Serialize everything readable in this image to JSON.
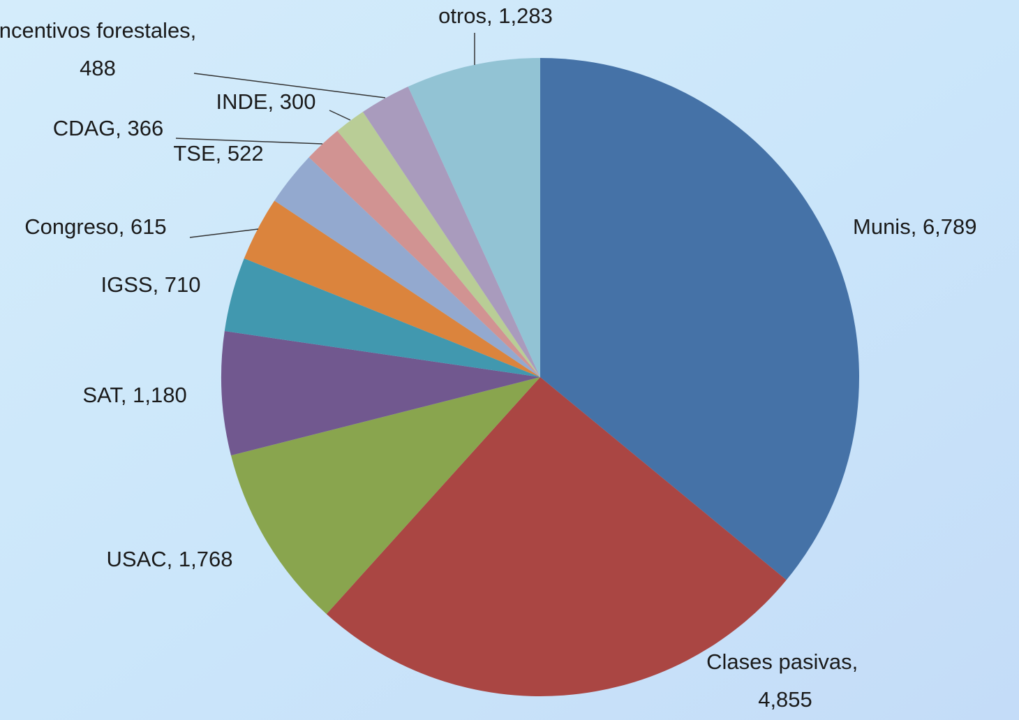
{
  "chart_data": {
    "type": "pie",
    "categories": [
      "Munis",
      "Clases pasivas",
      "USAC",
      "SAT",
      "IGSS",
      "Congreso",
      "TSE",
      "CDAG",
      "INDE",
      "Incentivos forestales",
      "otros"
    ],
    "values": [
      6789,
      4855,
      1768,
      1180,
      710,
      615,
      522,
      366,
      300,
      488,
      1283
    ],
    "value_labels": [
      "6,789",
      "4,855",
      "1,768",
      "1,180",
      "710",
      "615",
      "522",
      "366",
      "300",
      "488",
      "1,283"
    ],
    "label_separator": ",  ",
    "colors": [
      "#4572a7",
      "#aa4643",
      "#89a54e",
      "#71588f",
      "#4198af",
      "#db843d",
      "#93a9cf",
      "#d19392",
      "#b9cd96",
      "#a99bbd",
      "#92c3d4"
    ]
  }
}
